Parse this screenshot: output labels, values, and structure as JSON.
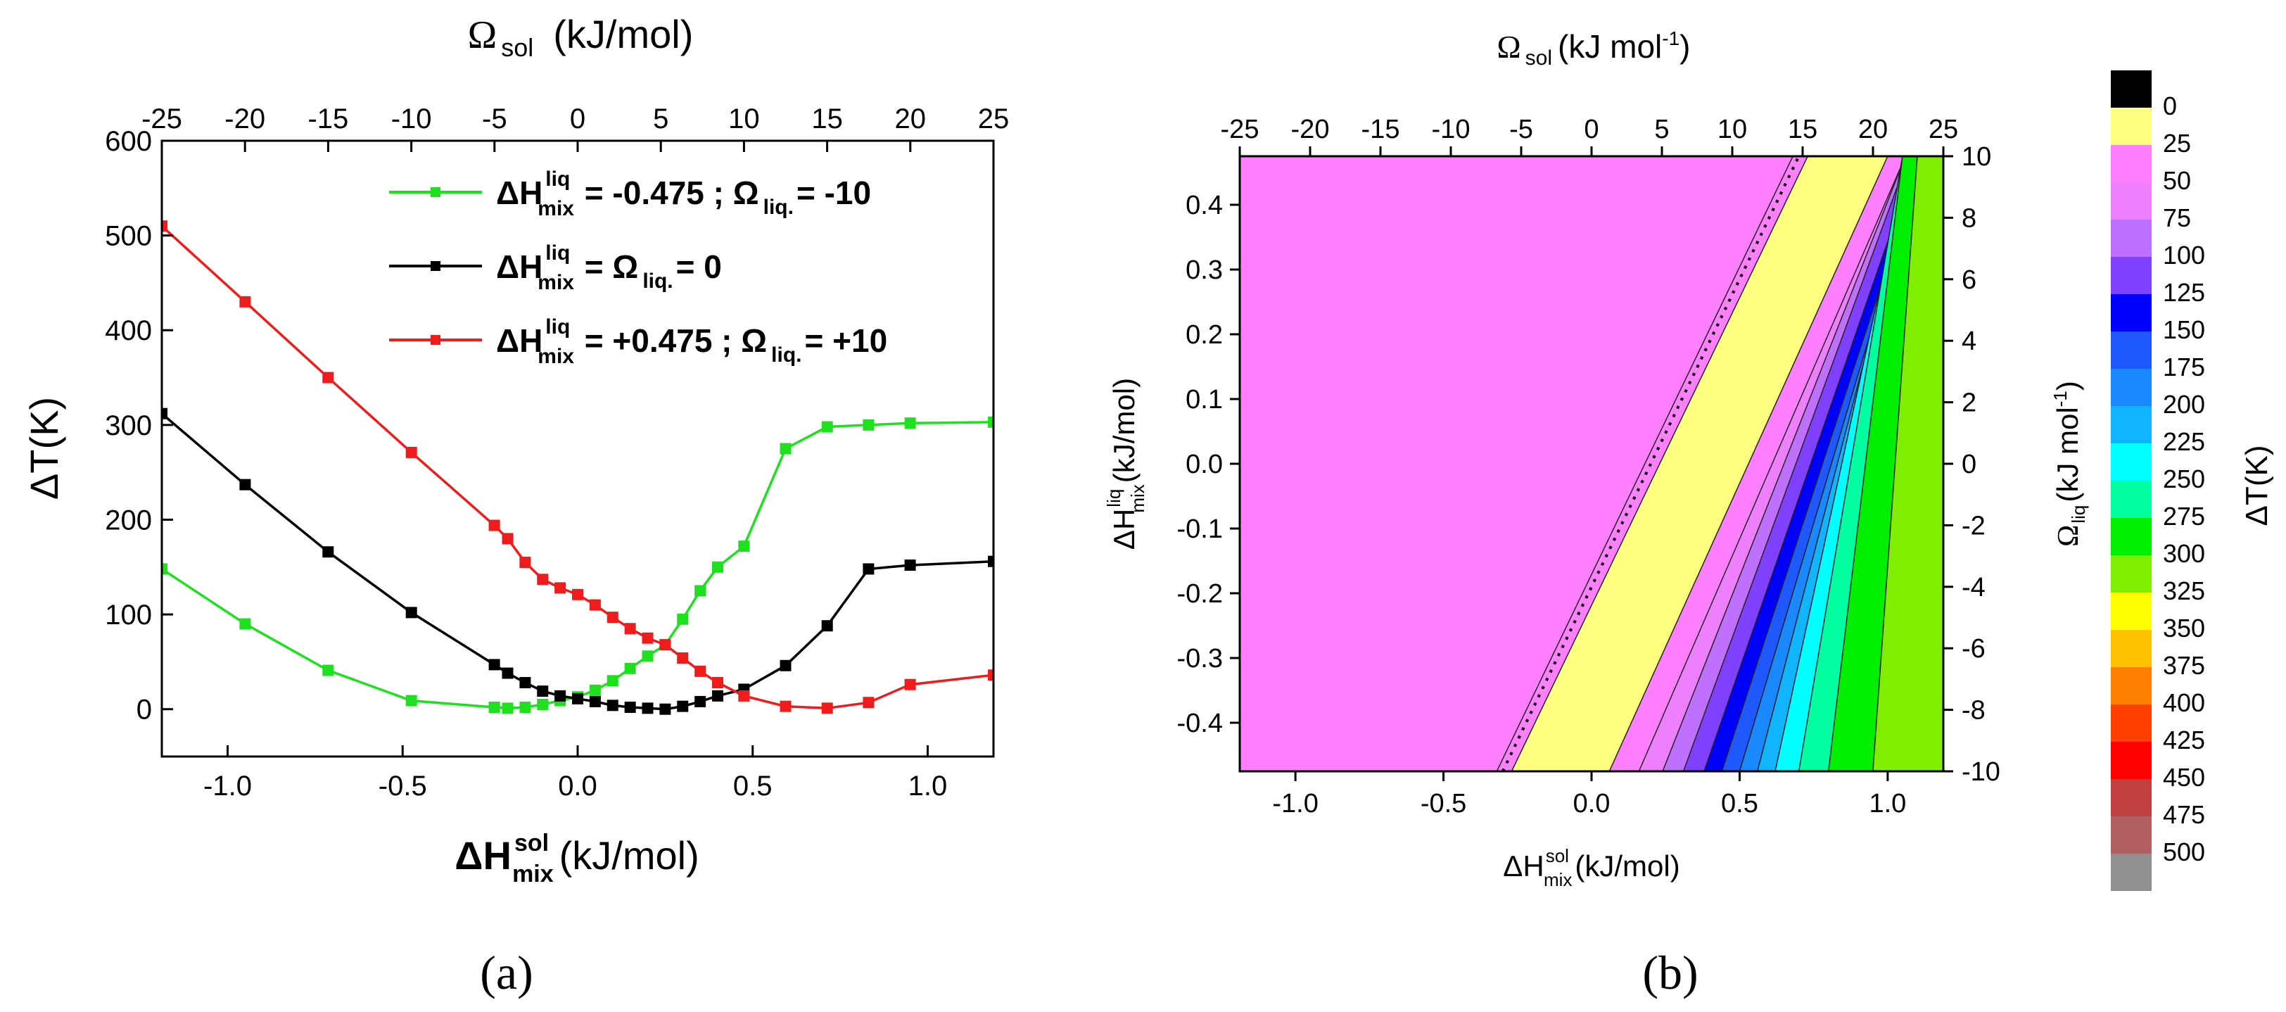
{
  "chart_data": [
    {
      "type": "line",
      "panel_label": "(a)",
      "x": [
        -1.188,
        -0.95,
        -0.713,
        -0.475,
        -0.238,
        -0.2,
        -0.15,
        -0.1,
        -0.05,
        0.0,
        0.05,
        0.1,
        0.15,
        0.2,
        0.25,
        0.3,
        0.35,
        0.4,
        0.475,
        0.594,
        0.713,
        0.831,
        0.95,
        1.188
      ],
      "series": [
        {
          "name": "liquid_neg",
          "color": "#1ee01e",
          "values": [
            148,
            90,
            41,
            9,
            2,
            1,
            2,
            5,
            9,
            13,
            20,
            30,
            43,
            56,
            68,
            95,
            125,
            150,
            172,
            275,
            298,
            300,
            302,
            303
          ]
        },
        {
          "name": "ideal",
          "color": "#000000",
          "values": [
            312,
            237,
            166,
            102,
            47,
            38,
            28,
            19,
            14,
            11,
            8,
            4,
            2,
            1,
            0,
            3,
            8,
            14,
            21,
            46,
            88,
            148,
            152,
            156
          ]
        },
        {
          "name": "liquid_pos",
          "color": "#ee1c1c",
          "values": [
            510,
            430,
            350,
            271,
            194,
            180,
            155,
            137,
            128,
            121,
            110,
            97,
            85,
            75,
            68,
            54,
            40,
            28,
            14,
            3,
            1,
            7,
            26,
            36
          ]
        }
      ],
      "legend_entries": [
        {
          "h_label": "ΔH",
          "h_sup": "liq",
          "h_sub": "mix",
          "mid": " = -0.475 ; Ω",
          "omega_sub": "liq.",
          "tail": "= -10"
        },
        {
          "h_label": "ΔH",
          "h_sup": "liq",
          "h_sub": "mix",
          "mid": " = Ω",
          "omega_sub": "liq.",
          "tail": "= 0"
        },
        {
          "h_label": "ΔH",
          "h_sup": "liq",
          "h_sub": "mix",
          "mid": " = +0.475 ; Ω",
          "omega_sub": "liq.",
          "tail": "= +10"
        }
      ],
      "xlim": [
        -1.188,
        1.188
      ],
      "ylim": [
        -50,
        600
      ],
      "x_ticks": [
        -1.0,
        -0.5,
        0.0,
        0.5,
        1.0
      ],
      "x_tick_labels": [
        "-1.0",
        "-0.5",
        "0.0",
        "0.5",
        "1.0"
      ],
      "y_ticks": [
        0,
        100,
        200,
        300,
        400,
        500,
        600
      ],
      "y_tick_labels": [
        "0",
        "100",
        "200",
        "300",
        "400",
        "500",
        "600"
      ],
      "top_ticks": [
        -25,
        -20,
        -15,
        -10,
        -5,
        0,
        5,
        10,
        15,
        20,
        25
      ],
      "top_tick_labels": [
        "-25",
        "-20",
        "-15",
        "-10",
        "-5",
        "0",
        "5",
        "10",
        "15",
        "20",
        "25"
      ],
      "ylabel": "ΔT(K)",
      "xlabel_main": "ΔH",
      "xlabel_sup": "sol",
      "xlabel_sub": "mix",
      "xlabel_unit": "(kJ/mol)",
      "top_label_main": "Ω",
      "top_label_sub": "sol",
      "top_label_unit": "(kJ/mol)"
    },
    {
      "type": "heatmap",
      "panel_label": "(b)",
      "xlim": [
        -1.188,
        1.188
      ],
      "ylim": [
        -0.475,
        0.475
      ],
      "x_ticks": [
        -1.0,
        -0.5,
        0.0,
        0.5,
        1.0
      ],
      "x_tick_labels": [
        "-1.0",
        "-0.5",
        "0.0",
        "0.5",
        "1.0"
      ],
      "y_ticks": [
        -0.4,
        -0.3,
        -0.2,
        -0.1,
        0.0,
        0.1,
        0.2,
        0.3,
        0.4
      ],
      "y_tick_labels": [
        "-0.4",
        "-0.3",
        "-0.2",
        "-0.1",
        "0.0",
        "0.1",
        "0.2",
        "0.3",
        "0.4"
      ],
      "top_ticks": [
        -25,
        -20,
        -15,
        -10,
        -5,
        0,
        5,
        10,
        15,
        20,
        25
      ],
      "top_tick_labels": [
        "-25",
        "-20",
        "-15",
        "-10",
        "-5",
        "0",
        "5",
        "10",
        "15",
        "20",
        "25"
      ],
      "right_ticks": [
        -10,
        -8,
        -6,
        -4,
        -2,
        0,
        2,
        4,
        6,
        8,
        10
      ],
      "right_tick_labels": [
        "-10",
        "-8",
        "-6",
        "-4",
        "-2",
        "0",
        "2",
        "4",
        "6",
        "8",
        "10"
      ],
      "xlabel_main": "ΔH",
      "xlabel_sup": "sol",
      "xlabel_sub": "mix",
      "xlabel_unit": "(kJ/mol)",
      "ylabel_main": "ΔH",
      "ylabel_sup": "liq",
      "ylabel_sub": "mix",
      "ylabel_unit": "(kJ/mol)",
      "top_label_main": "Ω",
      "top_label_sub": "sol",
      "top_label_unit": "(kJ mol",
      "top_label_sup": "-1",
      "top_label_close": ")",
      "right_label_main": "Ω",
      "right_label_sub": "liq",
      "right_label_unit": "(kJ mol",
      "right_label_sup": "-1",
      "right_label_close": ")",
      "zero_line_x_at_ymin": -0.3,
      "zero_line_x_at_ymax": 0.7,
      "colorbar": {
        "label": "ΔT(K)",
        "levels": [
          0,
          25,
          50,
          75,
          100,
          125,
          150,
          175,
          200,
          225,
          250,
          275,
          300,
          325,
          350,
          375,
          400,
          425,
          450,
          475,
          500
        ],
        "level_labels": [
          "0",
          "25",
          "50",
          "75",
          "100",
          "125",
          "150",
          "175",
          "200",
          "225",
          "250",
          "275",
          "300",
          "325",
          "350",
          "375",
          "400",
          "425",
          "450",
          "475",
          "500"
        ],
        "colors": [
          "#000000",
          "#ffff80",
          "#ff80ff",
          "#ee80ff",
          "#c070ff",
          "#8040ff",
          "#0000ff",
          "#2058ff",
          "#1a88ff",
          "#10b4ff",
          "#00ffff",
          "#00ffa0",
          "#00ee00",
          "#80ee00",
          "#ffff00",
          "#ffc000",
          "#ff8000",
          "#ff4000",
          "#ff0000",
          "#c04040",
          "#b06060",
          "#909090"
        ]
      }
    }
  ]
}
